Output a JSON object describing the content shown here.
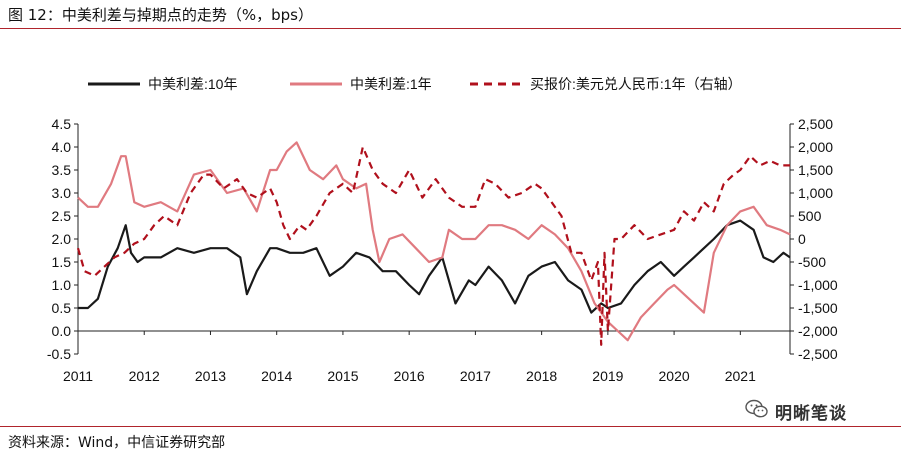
{
  "figure": {
    "title": "图 12：中美利差与掉期点的走势（%，bps）",
    "source": "资料来源：Wind，中信证券研究部",
    "watermark": "明晰笔谈",
    "watermark_icon": "wechat-icon"
  },
  "chart_data": {
    "type": "line",
    "x_range": [
      2011,
      2021.75
    ],
    "x_ticks": [
      2011,
      2012,
      2013,
      2014,
      2015,
      2016,
      2017,
      2018,
      2019,
      2020,
      2021
    ],
    "x_tick_labels": [
      "2011",
      "2012",
      "2013",
      "2014",
      "2015",
      "2016",
      "2017",
      "2018",
      "2019",
      "2020",
      "2021"
    ],
    "y_left": {
      "range": [
        -0.5,
        4.5
      ],
      "ticks": [
        -0.5,
        0.0,
        0.5,
        1.0,
        1.5,
        2.0,
        2.5,
        3.0,
        3.5,
        4.0,
        4.5
      ],
      "tick_labels": [
        "-0.5",
        "0.0",
        "0.5",
        "1.0",
        "1.5",
        "2.0",
        "2.5",
        "3.0",
        "3.5",
        "4.0",
        "4.5"
      ]
    },
    "y_right": {
      "range": [
        -2500,
        2500
      ],
      "ticks": [
        -2500,
        -2000,
        -1500,
        -1000,
        -500,
        0,
        500,
        1000,
        1500,
        2000,
        2500
      ],
      "tick_labels": [
        "-2,500",
        "-2,000",
        "-1,500",
        "-1,000",
        "-500",
        "0",
        "500",
        "1,000",
        "1,500",
        "2,000",
        "2,500"
      ]
    },
    "grid": false,
    "legend_position": "top",
    "series": [
      {
        "name": "中美利差:10年",
        "axis": "left",
        "color": "#1a1a1a",
        "style": "solid",
        "x": [
          2011.0,
          2011.15,
          2011.3,
          2011.45,
          2011.6,
          2011.72,
          2011.8,
          2011.9,
          2012.0,
          2012.25,
          2012.5,
          2012.75,
          2013.0,
          2013.25,
          2013.45,
          2013.55,
          2013.7,
          2013.9,
          2014.0,
          2014.2,
          2014.4,
          2014.6,
          2014.8,
          2015.0,
          2015.2,
          2015.4,
          2015.6,
          2015.8,
          2016.0,
          2016.15,
          2016.3,
          2016.5,
          2016.7,
          2016.9,
          2017.0,
          2017.2,
          2017.4,
          2017.6,
          2017.8,
          2018.0,
          2018.2,
          2018.4,
          2018.6,
          2018.75,
          2018.9,
          2019.0,
          2019.2,
          2019.4,
          2019.6,
          2019.8,
          2020.0,
          2020.15,
          2020.3,
          2020.45,
          2020.6,
          2020.8,
          2021.0,
          2021.2,
          2021.35,
          2021.5,
          2021.65,
          2021.75
        ],
        "y": [
          0.5,
          0.5,
          0.7,
          1.4,
          1.8,
          2.3,
          1.7,
          1.5,
          1.6,
          1.6,
          1.8,
          1.7,
          1.8,
          1.8,
          1.6,
          0.8,
          1.3,
          1.8,
          1.8,
          1.7,
          1.7,
          1.8,
          1.2,
          1.4,
          1.7,
          1.6,
          1.3,
          1.3,
          1.0,
          0.8,
          1.2,
          1.6,
          0.6,
          1.1,
          1.0,
          1.4,
          1.1,
          0.6,
          1.2,
          1.4,
          1.5,
          1.1,
          0.9,
          0.4,
          0.6,
          0.5,
          0.6,
          1.0,
          1.3,
          1.5,
          1.2,
          1.4,
          1.6,
          1.8,
          2.0,
          2.3,
          2.4,
          2.2,
          1.6,
          1.5,
          1.7,
          1.6
        ]
      },
      {
        "name": "中美利差:1年",
        "axis": "left",
        "color": "#e07a80",
        "style": "solid",
        "x": [
          2011.0,
          2011.15,
          2011.3,
          2011.5,
          2011.65,
          2011.72,
          2011.85,
          2012.0,
          2012.25,
          2012.5,
          2012.75,
          2013.0,
          2013.25,
          2013.5,
          2013.7,
          2013.9,
          2014.0,
          2014.15,
          2014.3,
          2014.5,
          2014.7,
          2014.9,
          2015.0,
          2015.2,
          2015.35,
          2015.45,
          2015.55,
          2015.7,
          2015.9,
          2016.1,
          2016.3,
          2016.5,
          2016.6,
          2016.8,
          2017.0,
          2017.2,
          2017.4,
          2017.6,
          2017.8,
          2018.0,
          2018.2,
          2018.4,
          2018.6,
          2018.8,
          2019.0,
          2019.15,
          2019.3,
          2019.5,
          2019.7,
          2019.9,
          2020.0,
          2020.15,
          2020.3,
          2020.45,
          2020.6,
          2020.8,
          2021.0,
          2021.2,
          2021.4,
          2021.6,
          2021.75
        ],
        "y": [
          2.9,
          2.7,
          2.7,
          3.2,
          3.8,
          3.8,
          2.8,
          2.7,
          2.8,
          2.6,
          3.4,
          3.5,
          3.0,
          3.1,
          2.6,
          3.5,
          3.5,
          3.9,
          4.1,
          3.5,
          3.3,
          3.6,
          3.3,
          3.1,
          3.2,
          2.2,
          1.5,
          2.0,
          2.1,
          1.8,
          1.5,
          1.6,
          2.2,
          2.0,
          2.0,
          2.3,
          2.3,
          2.2,
          2.0,
          2.3,
          2.1,
          1.8,
          1.3,
          0.6,
          0.2,
          0.0,
          -0.2,
          0.3,
          0.6,
          0.9,
          1.0,
          0.8,
          0.6,
          0.4,
          1.7,
          2.3,
          2.6,
          2.7,
          2.3,
          2.2,
          2.1
        ]
      },
      {
        "name": "买报价:美元兑人民币:1年（右轴）",
        "axis": "right",
        "color": "#b0101c",
        "style": "dashed",
        "x": [
          2011.0,
          2011.1,
          2011.25,
          2011.4,
          2011.55,
          2011.7,
          2011.85,
          2012.0,
          2012.15,
          2012.3,
          2012.5,
          2012.7,
          2012.9,
          2013.0,
          2013.2,
          2013.4,
          2013.55,
          2013.7,
          2013.9,
          2014.0,
          2014.1,
          2014.2,
          2014.35,
          2014.45,
          2014.6,
          2014.8,
          2015.0,
          2015.15,
          2015.3,
          2015.45,
          2015.6,
          2015.8,
          2016.0,
          2016.2,
          2016.4,
          2016.6,
          2016.8,
          2017.0,
          2017.15,
          2017.3,
          2017.5,
          2017.7,
          2017.9,
          2018.0,
          2018.15,
          2018.3,
          2018.45,
          2018.6,
          2018.75,
          2018.85,
          2018.9,
          2018.95,
          2019.0,
          2019.1,
          2019.2,
          2019.4,
          2019.6,
          2019.8,
          2020.0,
          2020.15,
          2020.3,
          2020.45,
          2020.6,
          2020.75,
          2020.9,
          2021.0,
          2021.15,
          2021.3,
          2021.45,
          2021.6,
          2021.75
        ],
        "y": [
          -200,
          -700,
          -800,
          -600,
          -400,
          -300,
          -100,
          0,
          300,
          500,
          300,
          1000,
          1400,
          1400,
          1100,
          1300,
          1000,
          900,
          1100,
          800,
          300,
          0,
          300,
          200,
          500,
          1000,
          1200,
          1000,
          2000,
          1500,
          1200,
          1000,
          1500,
          900,
          1300,
          900,
          700,
          700,
          1300,
          1200,
          900,
          1000,
          1200,
          1100,
          800,
          500,
          -300,
          -300,
          -900,
          -500,
          -2300,
          -300,
          -2000,
          0,
          0,
          300,
          0,
          100,
          200,
          600,
          400,
          800,
          600,
          1200,
          1400,
          1500,
          1800,
          1600,
          1700,
          1600,
          1600
        ]
      }
    ]
  }
}
